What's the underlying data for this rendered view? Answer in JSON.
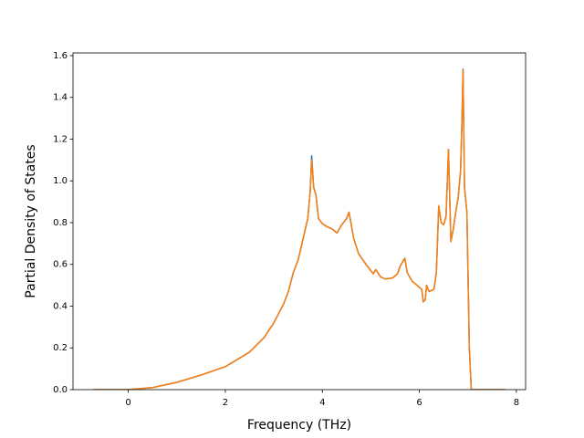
{
  "chart_data": {
    "type": "line",
    "xlabel": "Frequency (THz)",
    "ylabel": "Partial Density of States",
    "x": [
      -0.72,
      0,
      0.5,
      1,
      1.5,
      2,
      2.5,
      2.8,
      3.0,
      3.2,
      3.3,
      3.4,
      3.5,
      3.6,
      3.7,
      3.75,
      3.78,
      3.82,
      3.87,
      3.92,
      4.0,
      4.1,
      4.2,
      4.3,
      4.4,
      4.5,
      4.55,
      4.65,
      4.75,
      4.9,
      5.0,
      5.05,
      5.1,
      5.2,
      5.3,
      5.45,
      5.55,
      5.6,
      5.7,
      5.75,
      5.85,
      5.95,
      6.05,
      6.08,
      6.12,
      6.15,
      6.2,
      6.3,
      6.35,
      6.4,
      6.45,
      6.5,
      6.55,
      6.6,
      6.65,
      6.7,
      6.75,
      6.8,
      6.85,
      6.88,
      6.9,
      6.93,
      6.98,
      7.03,
      7.07,
      7.77
    ],
    "series": [
      {
        "color": "#1f77b4",
        "values": [
          0,
          0,
          0.01,
          0.035,
          0.07,
          0.11,
          0.18,
          0.25,
          0.32,
          0.41,
          0.47,
          0.56,
          0.62,
          0.72,
          0.82,
          0.95,
          1.12,
          0.97,
          0.93,
          0.82,
          0.795,
          0.78,
          0.77,
          0.75,
          0.79,
          0.82,
          0.85,
          0.72,
          0.65,
          0.6,
          0.57,
          0.555,
          0.575,
          0.54,
          0.53,
          0.535,
          0.555,
          0.59,
          0.63,
          0.56,
          0.52,
          0.5,
          0.48,
          0.42,
          0.43,
          0.5,
          0.47,
          0.48,
          0.56,
          0.88,
          0.8,
          0.79,
          0.83,
          1.15,
          0.71,
          0.77,
          0.85,
          0.92,
          1.05,
          1.3,
          1.535,
          0.97,
          0.85,
          0.2,
          0,
          0
        ]
      },
      {
        "color": "#ff7f0e",
        "values": [
          0,
          0,
          0.01,
          0.035,
          0.07,
          0.11,
          0.18,
          0.25,
          0.32,
          0.41,
          0.47,
          0.56,
          0.62,
          0.72,
          0.82,
          0.95,
          1.1,
          0.97,
          0.93,
          0.82,
          0.795,
          0.78,
          0.77,
          0.75,
          0.79,
          0.82,
          0.85,
          0.72,
          0.65,
          0.6,
          0.57,
          0.555,
          0.575,
          0.54,
          0.53,
          0.535,
          0.555,
          0.59,
          0.63,
          0.56,
          0.52,
          0.5,
          0.48,
          0.42,
          0.43,
          0.5,
          0.47,
          0.48,
          0.56,
          0.88,
          0.8,
          0.79,
          0.83,
          1.15,
          0.71,
          0.77,
          0.85,
          0.92,
          1.05,
          1.3,
          1.53,
          0.97,
          0.85,
          0.2,
          0,
          0
        ]
      }
    ],
    "xlim": [
      -1.14,
      8.19
    ],
    "ylim": [
      0,
      1.613
    ],
    "xticks": [
      0,
      2,
      4,
      6,
      8
    ],
    "yticks": [
      {
        "value": 0,
        "label": "0.0"
      },
      0.2,
      0.4,
      0.6,
      0.8,
      {
        "value": 1,
        "label": "1.0"
      },
      1.2,
      1.4,
      1.6
    ],
    "grid": false
  }
}
